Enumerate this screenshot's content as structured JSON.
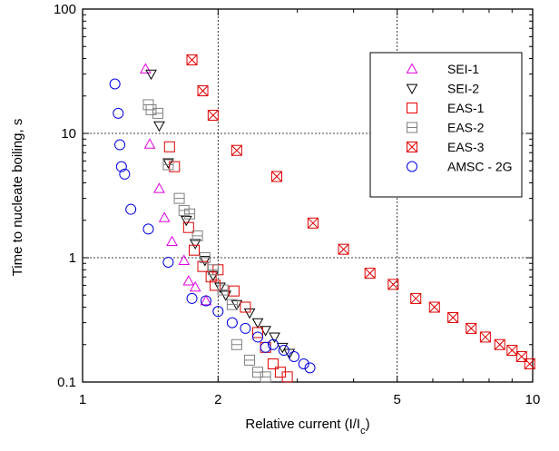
{
  "chart_data": {
    "type": "scatter",
    "xlabel": "Relative current (I/I",
    "xlabel_sub": "c",
    "xlabel_close": ")",
    "ylabel": "Time to nucleate boiling, s",
    "xscale": "log",
    "yscale": "log",
    "xlim": [
      1,
      10
    ],
    "ylim": [
      0.1,
      100
    ],
    "xticks": [
      1,
      2,
      5,
      10
    ],
    "yticks": [
      0.1,
      1,
      10,
      100
    ],
    "xtick_labels": [
      "1",
      "2",
      "5",
      "10"
    ],
    "ytick_labels": [
      "0.1",
      "1",
      "10",
      "100"
    ],
    "grid": true,
    "legend_position": "top-right",
    "series": [
      {
        "name": "SEI-1",
        "marker": "triangle-up",
        "color": "#e000e0",
        "points": [
          [
            1.38,
            33
          ],
          [
            1.41,
            8.2
          ],
          [
            1.48,
            3.6
          ],
          [
            1.52,
            2.1
          ],
          [
            1.58,
            1.35
          ],
          [
            1.68,
            0.95
          ],
          [
            1.72,
            0.65
          ],
          [
            1.78,
            0.58
          ],
          [
            1.88,
            0.45
          ]
        ]
      },
      {
        "name": "SEI-2",
        "marker": "triangle-down",
        "color": "#000000",
        "points": [
          [
            1.42,
            30
          ],
          [
            1.48,
            11.5
          ],
          [
            1.55,
            5.8
          ],
          [
            1.7,
            2.0
          ],
          [
            1.78,
            1.3
          ],
          [
            1.87,
            0.95
          ],
          [
            1.95,
            0.72
          ],
          [
            2.02,
            0.58
          ],
          [
            2.08,
            0.5
          ],
          [
            2.2,
            0.42
          ],
          [
            2.35,
            0.36
          ],
          [
            2.45,
            0.3
          ],
          [
            2.55,
            0.26
          ],
          [
            2.67,
            0.23
          ],
          [
            2.78,
            0.19
          ],
          [
            2.88,
            0.17
          ]
        ]
      },
      {
        "name": "EAS-1",
        "marker": "square",
        "color": "#e00000",
        "points": [
          [
            1.56,
            7.8
          ],
          [
            1.6,
            5.4
          ],
          [
            1.72,
            1.75
          ],
          [
            1.77,
            1.15
          ],
          [
            1.85,
            0.85
          ],
          [
            1.93,
            0.7
          ],
          [
            1.97,
            0.6
          ],
          [
            2.0,
            0.8
          ],
          [
            2.17,
            0.54
          ],
          [
            2.3,
            0.4
          ],
          [
            2.45,
            0.25
          ],
          [
            2.55,
            0.19
          ],
          [
            2.65,
            0.14
          ],
          [
            2.75,
            0.12
          ],
          [
            2.85,
            0.11
          ]
        ]
      },
      {
        "name": "EAS-2",
        "marker": "square-hline",
        "color": "#808080",
        "points": [
          [
            1.4,
            17
          ],
          [
            1.42,
            15.5
          ],
          [
            1.47,
            14.5
          ],
          [
            1.55,
            5.6
          ],
          [
            1.64,
            3.0
          ],
          [
            1.68,
            2.4
          ],
          [
            1.73,
            2.25
          ],
          [
            1.8,
            1.5
          ],
          [
            1.87,
            1.0
          ],
          [
            1.95,
            0.8
          ],
          [
            2.05,
            0.55
          ],
          [
            2.15,
            0.42
          ],
          [
            2.2,
            0.2
          ],
          [
            2.35,
            0.15
          ],
          [
            2.45,
            0.12
          ],
          [
            2.55,
            0.11
          ]
        ]
      },
      {
        "name": "EAS-3",
        "marker": "square-x",
        "color": "#e00000",
        "points": [
          [
            1.75,
            39
          ],
          [
            1.85,
            22
          ],
          [
            1.95,
            14
          ],
          [
            2.2,
            7.3
          ],
          [
            2.7,
            4.5
          ],
          [
            3.25,
            1.9
          ],
          [
            3.8,
            1.17
          ],
          [
            4.35,
            0.75
          ],
          [
            4.9,
            0.61
          ],
          [
            5.5,
            0.47
          ],
          [
            6.05,
            0.4
          ],
          [
            6.65,
            0.33
          ],
          [
            7.3,
            0.27
          ],
          [
            7.85,
            0.23
          ],
          [
            8.45,
            0.2
          ],
          [
            9.0,
            0.18
          ],
          [
            9.45,
            0.16
          ],
          [
            9.85,
            0.14
          ]
        ]
      },
      {
        "name": "AMSC - 2G",
        "marker": "circle",
        "color": "#0000e0",
        "points": [
          [
            1.18,
            25
          ],
          [
            1.2,
            14.5
          ],
          [
            1.21,
            8.1
          ],
          [
            1.22,
            5.4
          ],
          [
            1.24,
            4.7
          ],
          [
            1.28,
            2.45
          ],
          [
            1.4,
            1.7
          ],
          [
            1.55,
            0.92
          ],
          [
            1.75,
            0.47
          ],
          [
            1.88,
            0.45
          ],
          [
            2.0,
            0.37
          ],
          [
            2.15,
            0.3
          ],
          [
            2.3,
            0.27
          ],
          [
            2.45,
            0.23
          ],
          [
            2.55,
            0.19
          ],
          [
            2.65,
            0.2
          ],
          [
            2.8,
            0.18
          ],
          [
            2.95,
            0.16
          ],
          [
            3.1,
            0.14
          ],
          [
            3.2,
            0.13
          ]
        ]
      }
    ]
  }
}
